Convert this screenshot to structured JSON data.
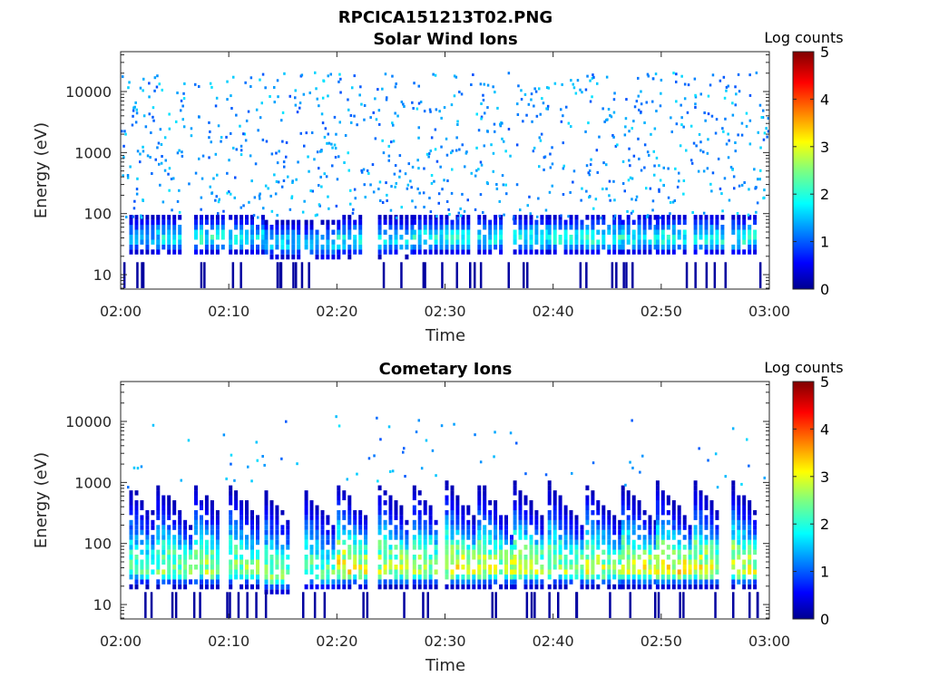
{
  "figure_title": "RPCICA151213T02.PNG",
  "chart_data": [
    {
      "type": "heatmap",
      "title": "Solar Wind Ions",
      "xlabel": "Time",
      "ylabel": "Energy (eV)",
      "x_ticks": [
        "02:00",
        "02:10",
        "02:20",
        "02:30",
        "02:40",
        "02:50",
        "03:00"
      ],
      "x_range_minutes": [
        0,
        60
      ],
      "y_scale": "log",
      "y_ticks": [
        10,
        100,
        1000,
        10000
      ],
      "y_tick_labels": [
        "10",
        "100",
        "1000",
        "10000"
      ],
      "y_range": [
        5.8,
        45000
      ],
      "colorbar": {
        "label": "Log counts",
        "ticks": [
          0,
          1,
          2,
          3,
          4,
          5
        ],
        "range": [
          0,
          5
        ],
        "colormap": "jet"
      },
      "bands": [
        {
          "start_min": 0.8,
          "center_log10_eV": 1.58,
          "peak_log_counts": 1.8
        },
        {
          "start_min": 3.3,
          "center_log10_eV": 1.58,
          "peak_log_counts": 2.2
        },
        {
          "start_min": 6.8,
          "center_log10_eV": 1.58,
          "peak_log_counts": 2.4
        },
        {
          "start_min": 10.0,
          "center_log10_eV": 1.58,
          "peak_log_counts": 2.2
        },
        {
          "start_min": 13.3,
          "center_log10_eV": 1.5,
          "peak_log_counts": 2.0
        },
        {
          "start_min": 17.0,
          "center_log10_eV": 1.48,
          "peak_log_counts": 1.9
        },
        {
          "start_min": 20.0,
          "center_log10_eV": 1.55,
          "peak_log_counts": 2.3
        },
        {
          "start_min": 23.8,
          "center_log10_eV": 1.55,
          "peak_log_counts": 2.1
        },
        {
          "start_min": 27.0,
          "center_log10_eV": 1.58,
          "peak_log_counts": 2.3
        },
        {
          "start_min": 30.0,
          "center_log10_eV": 1.58,
          "peak_log_counts": 2.3
        },
        {
          "start_min": 33.0,
          "center_log10_eV": 1.58,
          "peak_log_counts": 2.2
        },
        {
          "start_min": 36.3,
          "center_log10_eV": 1.58,
          "peak_log_counts": 2.3
        },
        {
          "start_min": 39.5,
          "center_log10_eV": 1.58,
          "peak_log_counts": 2.3
        },
        {
          "start_min": 43.0,
          "center_log10_eV": 1.58,
          "peak_log_counts": 2.4
        },
        {
          "start_min": 46.3,
          "center_log10_eV": 1.58,
          "peak_log_counts": 2.3
        },
        {
          "start_min": 49.5,
          "center_log10_eV": 1.58,
          "peak_log_counts": 2.4
        },
        {
          "start_min": 53.0,
          "center_log10_eV": 1.58,
          "peak_log_counts": 2.4
        },
        {
          "start_min": 56.5,
          "center_log10_eV": 1.58,
          "peak_log_counts": 2.4
        }
      ]
    },
    {
      "type": "heatmap",
      "title": "Cometary Ions",
      "xlabel": "Time",
      "ylabel": "Energy (eV)",
      "x_ticks": [
        "02:00",
        "02:10",
        "02:20",
        "02:30",
        "02:40",
        "02:50",
        "03:00"
      ],
      "x_range_minutes": [
        0,
        60
      ],
      "y_scale": "log",
      "y_ticks": [
        10,
        100,
        1000,
        10000
      ],
      "y_tick_labels": [
        "10",
        "100",
        "1000",
        "10000"
      ],
      "y_range": [
        5.8,
        45000
      ],
      "colorbar": {
        "label": "Log counts",
        "ticks": [
          0,
          1,
          2,
          3,
          4,
          5
        ],
        "range": [
          0,
          5
        ],
        "colormap": "jet"
      },
      "bands": [
        {
          "start_min": 0.8,
          "center_log10_eV": 1.55,
          "peak_log_counts": 2.6
        },
        {
          "start_min": 3.3,
          "center_log10_eV": 1.55,
          "peak_log_counts": 3.0
        },
        {
          "start_min": 6.8,
          "center_log10_eV": 1.55,
          "peak_log_counts": 3.2
        },
        {
          "start_min": 10.0,
          "center_log10_eV": 1.55,
          "peak_log_counts": 3.0
        },
        {
          "start_min": 13.3,
          "center_log10_eV": 1.45,
          "peak_log_counts": 2.8
        },
        {
          "start_min": 17.0,
          "center_log10_eV": 1.5,
          "peak_log_counts": 2.7
        },
        {
          "start_min": 20.0,
          "center_log10_eV": 1.55,
          "peak_log_counts": 3.6
        },
        {
          "start_min": 23.8,
          "center_log10_eV": 1.55,
          "peak_log_counts": 3.3
        },
        {
          "start_min": 27.0,
          "center_log10_eV": 1.55,
          "peak_log_counts": 3.2
        },
        {
          "start_min": 30.0,
          "center_log10_eV": 1.55,
          "peak_log_counts": 3.5
        },
        {
          "start_min": 33.0,
          "center_log10_eV": 1.55,
          "peak_log_counts": 3.4
        },
        {
          "start_min": 36.3,
          "center_log10_eV": 1.55,
          "peak_log_counts": 3.3
        },
        {
          "start_min": 39.5,
          "center_log10_eV": 1.55,
          "peak_log_counts": 3.2
        },
        {
          "start_min": 43.0,
          "center_log10_eV": 1.55,
          "peak_log_counts": 3.3
        },
        {
          "start_min": 46.3,
          "center_log10_eV": 1.55,
          "peak_log_counts": 3.4
        },
        {
          "start_min": 49.5,
          "center_log10_eV": 1.55,
          "peak_log_counts": 3.6
        },
        {
          "start_min": 53.0,
          "center_log10_eV": 1.55,
          "peak_log_counts": 3.5
        },
        {
          "start_min": 56.5,
          "center_log10_eV": 1.55,
          "peak_log_counts": 3.4
        }
      ]
    }
  ]
}
